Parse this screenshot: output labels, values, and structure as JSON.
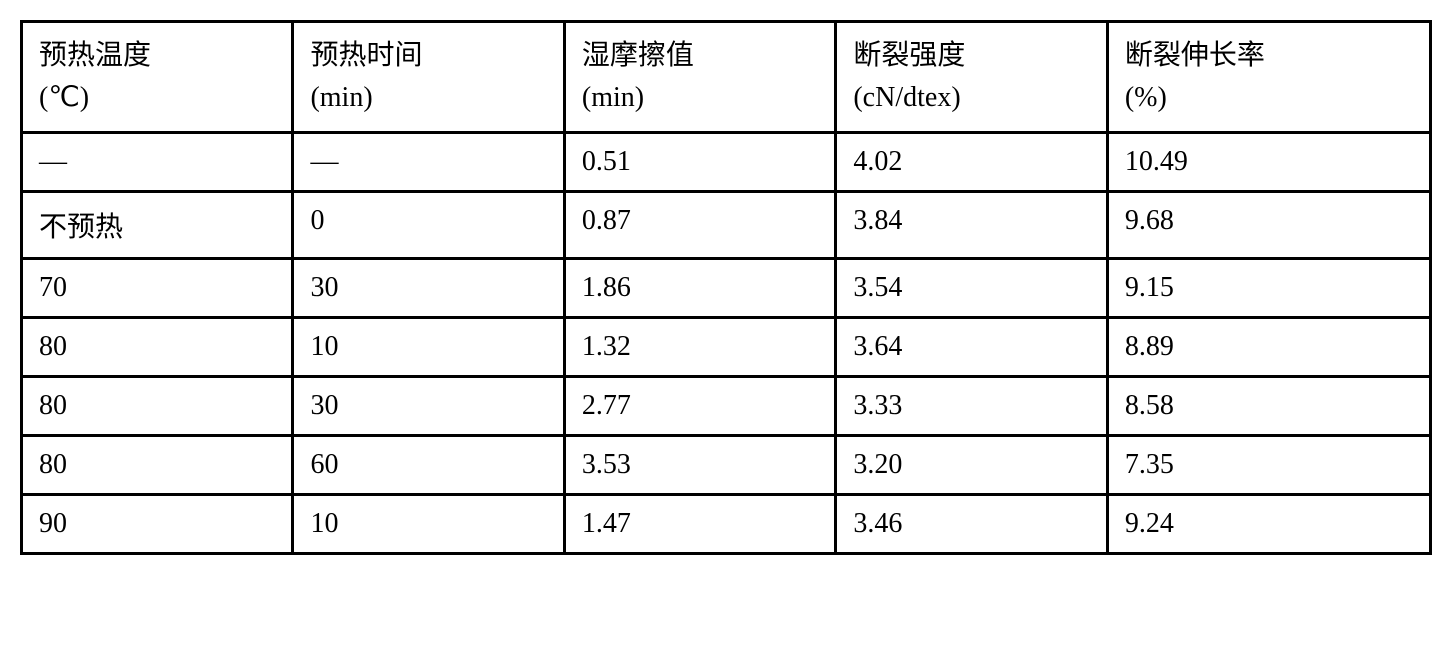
{
  "table": {
    "columns": [
      {
        "label": "预热温度",
        "unit": "(℃)"
      },
      {
        "label": "预热时间",
        "unit": "(min)"
      },
      {
        "label": "湿摩擦值",
        "unit": "(min)"
      },
      {
        "label": "断裂强度",
        "unit": "(cN/dtex)"
      },
      {
        "label": "断裂伸长率",
        "unit": "(%)"
      }
    ],
    "rows": [
      [
        "—",
        "—",
        "0.51",
        "4.02",
        "10.49"
      ],
      [
        "不预热",
        "0",
        "0.87",
        "3.84",
        "9.68"
      ],
      [
        "70",
        "30",
        "1.86",
        "3.54",
        "9.15"
      ],
      [
        "80",
        "10",
        "1.32",
        "3.64",
        "8.89"
      ],
      [
        "80",
        "30",
        "2.77",
        "3.33",
        "8.58"
      ],
      [
        "80",
        "60",
        "3.53",
        "3.20",
        "7.35"
      ],
      [
        "90",
        "10",
        "1.47",
        "3.46",
        "9.24"
      ]
    ],
    "border_color": "#000000",
    "background_color": "#ffffff",
    "font_size": 28,
    "border_width": 3
  }
}
